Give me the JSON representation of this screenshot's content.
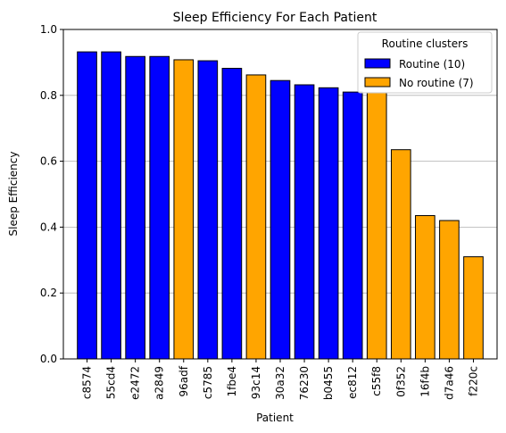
{
  "chart_data": {
    "type": "bar",
    "title": "Sleep Efficiency For Each Patient",
    "xlabel": "Patient",
    "ylabel": "Sleep Efficiency",
    "ylim": [
      0,
      1.0
    ],
    "yticks": [
      "0.0",
      "0.2",
      "0.4",
      "0.6",
      "0.8",
      "1.0"
    ],
    "grid": "y-axis",
    "legend": {
      "title": "Routine clusters",
      "placement": "top-right",
      "entries": [
        {
          "label": "Routine (10)",
          "color": "#0000ff"
        },
        {
          "label": "No routine (7)",
          "color": "#ffa500"
        }
      ]
    },
    "categories": [
      "c8574",
      "55cd4",
      "e2472",
      "a2849",
      "96adf",
      "c5785",
      "1fbe4",
      "93c14",
      "30a32",
      "76230",
      "b0455",
      "ec812",
      "c55f8",
      "0f352",
      "16f4b",
      "d7a46",
      "f220c"
    ],
    "values": [
      0.932,
      0.932,
      0.918,
      0.918,
      0.908,
      0.905,
      0.882,
      0.862,
      0.845,
      0.832,
      0.823,
      0.81,
      0.808,
      0.635,
      0.435,
      0.42,
      0.31
    ],
    "groups": [
      "Routine",
      "Routine",
      "Routine",
      "Routine",
      "No routine",
      "Routine",
      "Routine",
      "No routine",
      "Routine",
      "Routine",
      "Routine",
      "Routine",
      "No routine",
      "No routine",
      "No routine",
      "No routine",
      "No routine"
    ],
    "colors": {
      "Routine": "#0000ff",
      "No routine": "#ffa500",
      "edge": "#000000",
      "grid": "#b0b0b0"
    }
  }
}
